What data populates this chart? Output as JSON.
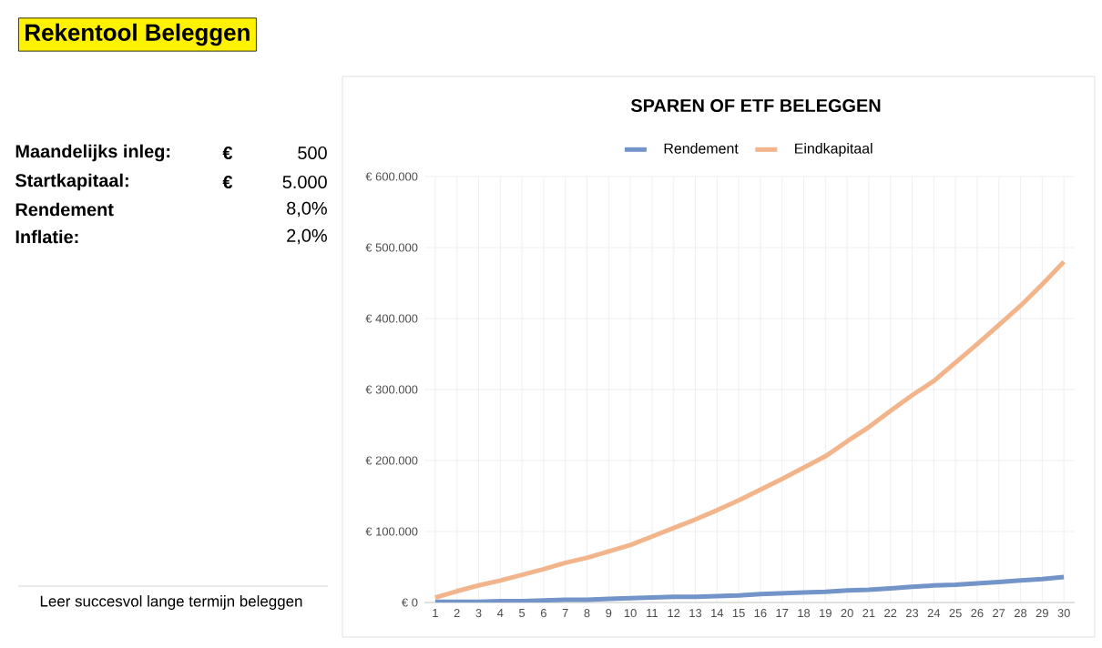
{
  "chart_data": {
    "type": "line",
    "title": "SPAREN OF ETF BELEGGEN",
    "categories": [
      "1",
      "2",
      "3",
      "4",
      "5",
      "6",
      "7",
      "8",
      "9",
      "10",
      "11",
      "12",
      "13",
      "14",
      "15",
      "16",
      "17",
      "18",
      "19",
      "20",
      "21",
      "22",
      "23",
      "24",
      "25",
      "26",
      "27",
      "28",
      "29",
      "30"
    ],
    "series": [
      {
        "name": "Rendement",
        "color": "#7394c8",
        "values": [
          1000,
          1000,
          1000,
          2000,
          2000,
          3000,
          4000,
          4000,
          5000,
          6000,
          7000,
          8000,
          8000,
          9000,
          10000,
          12000,
          13000,
          14000,
          15000,
          17000,
          18000,
          20000,
          22000,
          24000,
          25000,
          27000,
          29000,
          31000,
          33000,
          36000
        ]
      },
      {
        "name": "Eindkapitaal",
        "color": "#f2b48a",
        "values": [
          7000,
          16000,
          24000,
          31000,
          39000,
          47000,
          56000,
          63000,
          72000,
          81000,
          93000,
          105000,
          117000,
          130000,
          144000,
          159000,
          174000,
          190000,
          206000,
          227000,
          247000,
          270000,
          292000,
          312000,
          338000,
          364000,
          391000,
          418000,
          448000,
          480000
        ]
      }
    ],
    "ylim": [
      0,
      600000
    ],
    "yticks": [
      {
        "value": 0,
        "label": "€ 0"
      },
      {
        "value": 100000,
        "label": "€ 100.000"
      },
      {
        "value": 200000,
        "label": "€ 200.000"
      },
      {
        "value": 300000,
        "label": "€ 300.000"
      },
      {
        "value": 400000,
        "label": "€ 400.000"
      },
      {
        "value": 500000,
        "label": "€ 500.000"
      },
      {
        "value": 600000,
        "label": "€ 600.000"
      }
    ],
    "grid": true,
    "legend": "top",
    "marker": "none",
    "line_style": "solid",
    "annotations": [
      "Rekentool Beleggen",
      "Maandelijks inleg:",
      "€",
      "500",
      "Startkapitaal:",
      "€",
      "5.000",
      "Rendement",
      "8,0%",
      "Inflatie:",
      "2,0%",
      "Leer succesvol lange termijn beleggen"
    ]
  }
}
